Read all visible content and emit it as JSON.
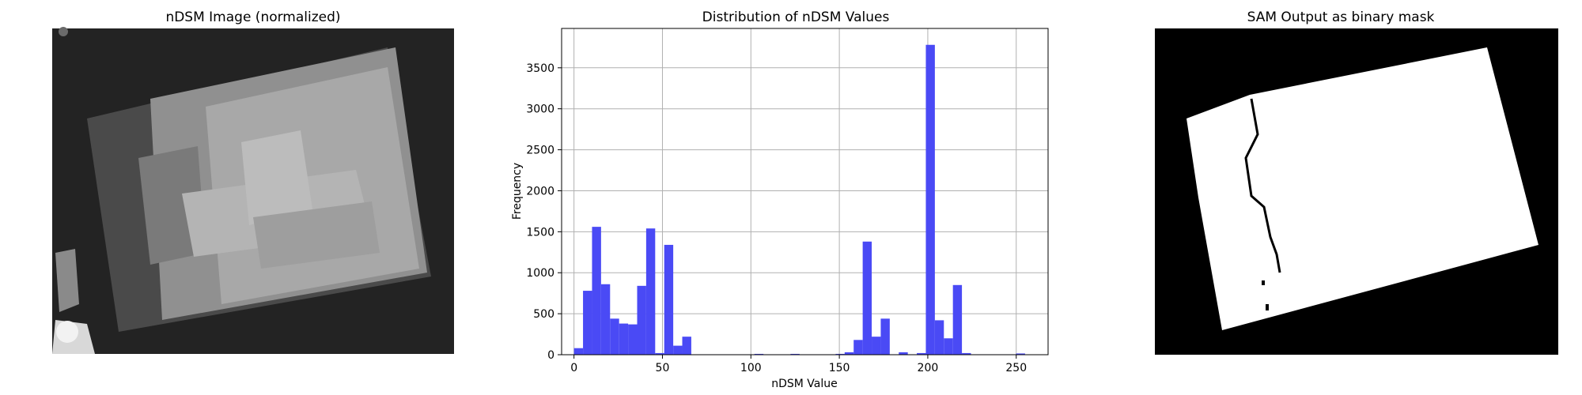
{
  "panels": {
    "left_title": "nDSM Image (normalized)",
    "middle_title": "Distribution of nDSM Values",
    "right_title": "SAM Output as binary mask"
  },
  "colors": {
    "bar": "#4a4af5",
    "grid": "#b0b0b0",
    "image_bg": "#1c1c1c",
    "mask_bg": "#000000",
    "mask_fg": "#ffffff"
  },
  "chart_data": {
    "type": "bar",
    "title": "Distribution of nDSM Values",
    "xlabel": "nDSM Value",
    "ylabel": "Frequency",
    "xlim": [
      -7,
      268
    ],
    "ylim": [
      0,
      3980
    ],
    "grid": true,
    "x_ticks": [
      0,
      50,
      100,
      150,
      200,
      250
    ],
    "y_ticks": [
      0,
      500,
      1000,
      1500,
      2000,
      2500,
      3000,
      3500
    ],
    "bin_width": 5.1,
    "bin_starts": [
      0,
      5.1,
      10.2,
      15.3,
      20.4,
      25.5,
      30.6,
      35.7,
      40.8,
      45.9,
      51.0,
      56.1,
      61.2,
      66.3,
      71.4,
      76.5,
      81.6,
      86.7,
      91.8,
      96.9,
      102.0,
      107.1,
      112.2,
      117.3,
      122.4,
      127.5,
      132.6,
      137.7,
      142.8,
      147.9,
      153.0,
      158.1,
      163.2,
      168.3,
      173.4,
      178.5,
      183.6,
      188.7,
      193.8,
      198.9,
      204.0,
      209.1,
      214.2,
      219.3,
      224.4,
      229.5,
      234.6,
      239.7,
      244.8,
      249.9
    ],
    "values": [
      80,
      780,
      1560,
      860,
      440,
      380,
      370,
      840,
      1540,
      20,
      1340,
      110,
      220,
      5,
      5,
      5,
      5,
      5,
      5,
      5,
      10,
      5,
      5,
      5,
      10,
      5,
      5,
      5,
      5,
      10,
      30,
      180,
      1380,
      220,
      440,
      5,
      30,
      5,
      20,
      3780,
      420,
      200,
      850,
      20,
      5,
      5,
      5,
      5,
      5,
      15
    ]
  }
}
